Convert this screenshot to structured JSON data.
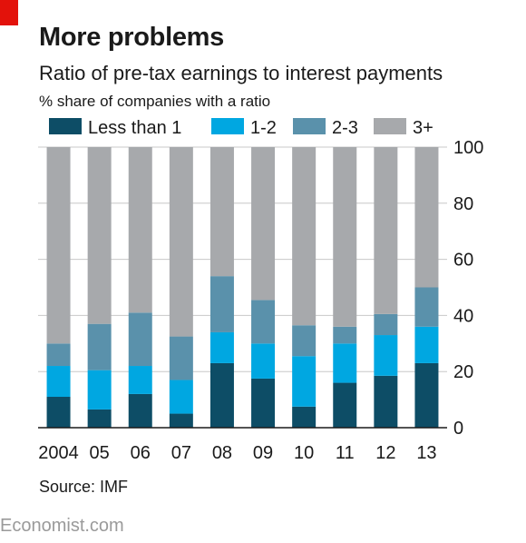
{
  "header": {
    "title": "More problems",
    "subtitle": "Ratio of pre-tax earnings to interest payments",
    "unit": "% share of companies with a ratio"
  },
  "footer": {
    "source": "Source: IMF",
    "brand": "Economist.com"
  },
  "colors": {
    "accent": "#e3120b",
    "series": [
      "#0d4d66",
      "#00a7e1",
      "#5a91ab",
      "#a7a9ac"
    ]
  },
  "chart_data": {
    "type": "bar",
    "stacked": true,
    "categories": [
      "2004",
      "05",
      "06",
      "07",
      "08",
      "09",
      "10",
      "11",
      "12",
      "13"
    ],
    "series": [
      {
        "name": "Less than 1",
        "values": [
          11,
          6.5,
          12,
          5,
          23,
          17.5,
          7.5,
          16,
          18.5,
          23
        ]
      },
      {
        "name": "1-2",
        "values": [
          11,
          14,
          10,
          12,
          11,
          12.5,
          18,
          14,
          14.5,
          13
        ]
      },
      {
        "name": "2-3",
        "values": [
          8,
          16.5,
          19,
          15.5,
          20,
          15.5,
          11,
          6,
          7.5,
          14
        ]
      },
      {
        "name": "3+",
        "values": [
          70,
          63,
          59,
          67.5,
          46,
          54.5,
          63.5,
          64,
          59.5,
          50
        ]
      }
    ],
    "ylim": [
      0,
      100
    ],
    "yticks": [
      0,
      20,
      40,
      60,
      80,
      100
    ],
    "y_axis_side": "right",
    "grid": true,
    "legend_position": "top"
  }
}
